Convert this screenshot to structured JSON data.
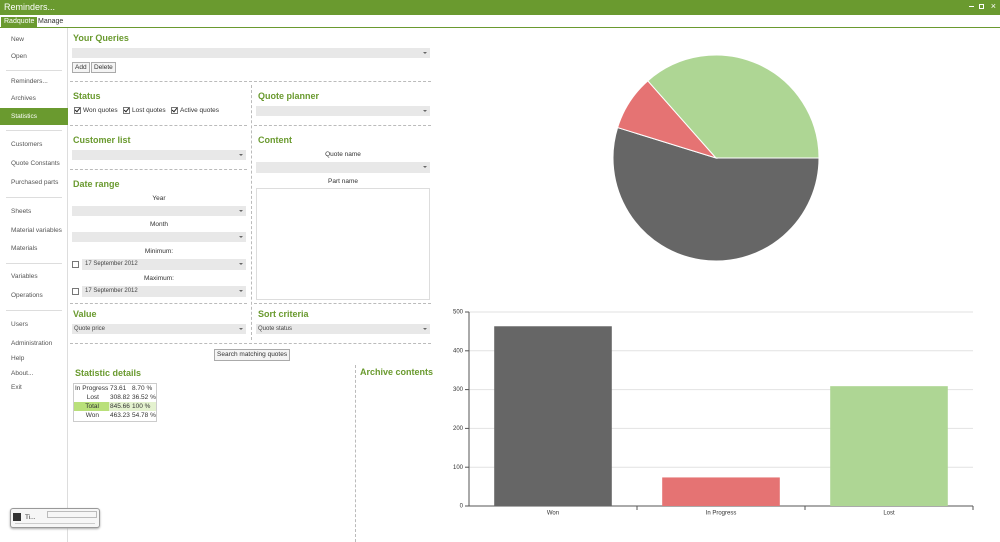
{
  "window": {
    "title": "Reminders...",
    "tabs": [
      "Radquote",
      "Manage"
    ]
  },
  "sidebar": [
    "New",
    "Open",
    "Reminders...",
    "Archives",
    "Statistics",
    "Customers",
    "Quote Constants",
    "Purchased parts",
    "Sheets",
    "Material variables",
    "Materials",
    "Variables",
    "Operations",
    "Users",
    "Administration",
    "Help",
    "About...",
    "Exit"
  ],
  "queries": {
    "title": "Your Queries",
    "buttons": [
      "Add",
      "Delete"
    ]
  },
  "status": {
    "title": "Status",
    "options": [
      "Won quotes",
      "Lost quotes",
      "Active quotes"
    ]
  },
  "quote_planner": {
    "title": "Quote planner"
  },
  "customer_list": {
    "title": "Customer list"
  },
  "content": {
    "title": "Content",
    "quote_name": "Quote name",
    "part_name": "Part name"
  },
  "date_range": {
    "title": "Date range",
    "year": "Year",
    "month": "Month",
    "minimum": "Minimum:",
    "minimum_date": "17 September 2012",
    "maximum": "Maximum:",
    "maximum_date": "17 September 2012"
  },
  "value": {
    "title": "Value",
    "selected": "Quote price"
  },
  "sort_criteria": {
    "title": "Sort criteria",
    "selected": "Quote status"
  },
  "search_button": "Search matching quotes",
  "statistic_details": {
    "title": "Statistic details",
    "rows": [
      [
        "In Progress",
        "73.61",
        "8.70 %"
      ],
      [
        "Lost",
        "308.82",
        "36.52 %"
      ],
      [
        "Total",
        "845.66",
        "100 %"
      ],
      [
        "Won",
        "463.23",
        "54.78 %"
      ]
    ]
  },
  "archive_contents": {
    "title": "Archive contents"
  },
  "taskbar": {
    "label": "Ti..."
  },
  "chart_data": [
    {
      "type": "pie",
      "values": [
        463.23,
        73.61,
        308.82
      ],
      "colors": [
        "#666666",
        "#e57373",
        "#aed694"
      ]
    },
    {
      "type": "bar",
      "categories": [
        "Won",
        "In Progress",
        "Lost"
      ],
      "values": [
        463.23,
        73.61,
        308.82
      ],
      "colors": [
        "#666666",
        "#e57373",
        "#aed694"
      ],
      "ylim": [
        0,
        500
      ],
      "yticks": [
        0,
        100,
        200,
        300,
        400,
        500
      ],
      "grid": true
    }
  ]
}
